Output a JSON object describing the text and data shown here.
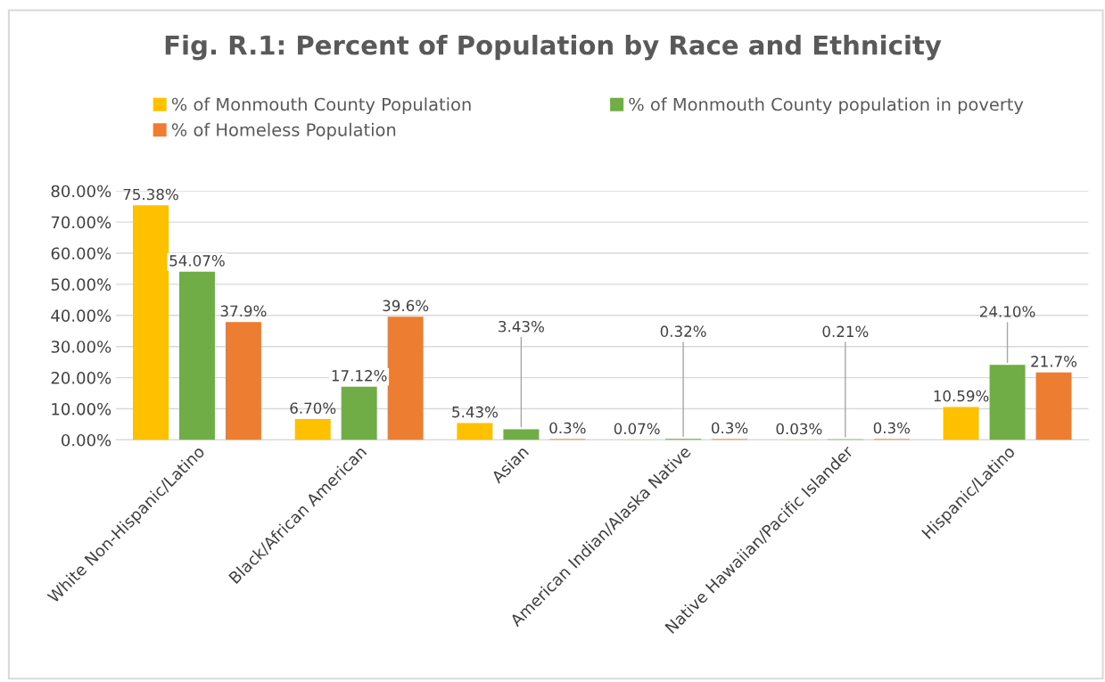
{
  "chart_data": {
    "type": "bar",
    "title": "Fig. R.1: Percent of Population by Race and Ethnicity",
    "categories": [
      "White Non-Hispanic/Latino",
      "Black/African American",
      "Asian",
      "American Indian/Alaska Native",
      "Native Hawaiian/Pacific Islander",
      "Hispanic/Latino"
    ],
    "series": [
      {
        "name": "% of Monmouth County Population",
        "color": "#ffc000",
        "values": [
          75.38,
          6.7,
          5.43,
          0.07,
          0.03,
          10.59
        ],
        "value_labels": [
          "75.38%",
          "6.70%",
          "5.43%",
          "0.07%",
          "0.03%",
          "10.59%"
        ]
      },
      {
        "name": "% of Monmouth County population in poverty",
        "color": "#70ad47",
        "values": [
          54.07,
          17.12,
          3.43,
          0.32,
          0.21,
          24.1
        ],
        "value_labels": [
          "54.07%",
          "17.12%",
          "3.43%",
          "0.32%",
          "0.21%",
          "24.10%"
        ]
      },
      {
        "name": "% of Homeless Population",
        "color": "#ed7d31",
        "values": [
          37.9,
          39.6,
          0.3,
          0.3,
          0.3,
          21.7
        ],
        "value_labels": [
          "37.9%",
          "39.6%",
          "0.3%",
          "0.3%",
          "0.3%",
          "21.7%"
        ]
      }
    ],
    "ylim": [
      0,
      80
    ],
    "yticks": [
      {
        "value": 0,
        "label": "0.00%"
      },
      {
        "value": 10,
        "label": "10.00%"
      },
      {
        "value": 20,
        "label": "20.00%"
      },
      {
        "value": 30,
        "label": "30.00%"
      },
      {
        "value": 40,
        "label": "40.00%"
      },
      {
        "value": 50,
        "label": "50.00%"
      },
      {
        "value": 60,
        "label": "60.00%"
      },
      {
        "value": 70,
        "label": "70.00%"
      },
      {
        "value": 80,
        "label": "80.00%"
      }
    ],
    "grid": "y",
    "legend": "top"
  }
}
